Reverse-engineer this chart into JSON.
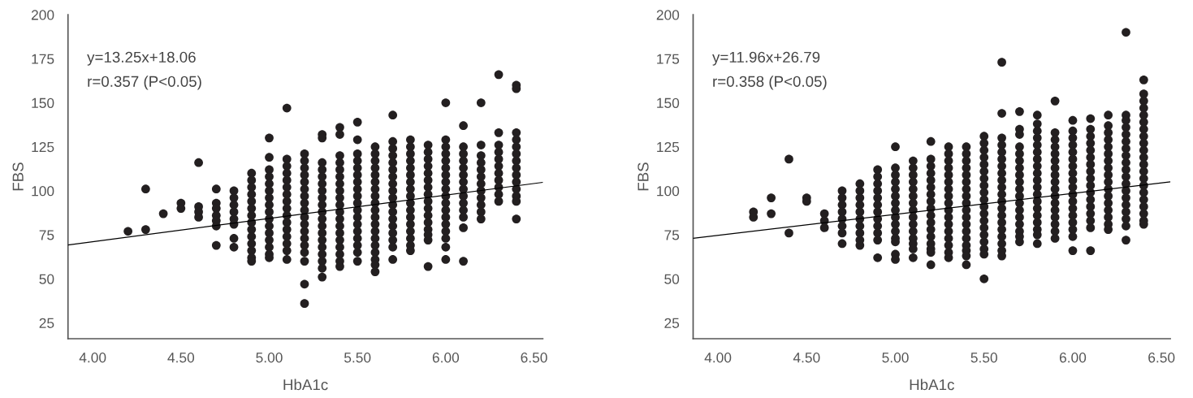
{
  "chart_data": [
    {
      "type": "scatter",
      "xlabel": "HbA1c",
      "ylabel": "FBS",
      "xlim": [
        3.86,
        6.55
      ],
      "ylim": [
        16,
        200
      ],
      "xticks": [
        {
          "value": 4,
          "label": "4.00"
        },
        {
          "value": 4.5,
          "label": "4.50"
        },
        {
          "value": 5,
          "label": "5.00"
        },
        {
          "value": 5.5,
          "label": "5.50"
        },
        {
          "value": 6,
          "label": "6.00"
        },
        {
          "value": 6.5,
          "label": "6.50"
        }
      ],
      "yticks": [
        25,
        50,
        75,
        100,
        125,
        150,
        175,
        200
      ],
      "grid": false,
      "marker": "circle",
      "annotations": [
        "y=13.25x+18.06",
        "r=0.357 (P<0.05)"
      ],
      "series": [
        {
          "color": "#231f20",
          "x": [
            4.2,
            4.3,
            4.3,
            4.4,
            4.5,
            4.5,
            4.6,
            4.6,
            4.6,
            4.6
          ],
          "values": [
            77,
            101,
            78,
            87,
            93,
            90,
            116,
            91,
            88,
            85
          ]
        },
        {
          "color": "#231f20",
          "x": [
            4.7,
            4.7,
            4.7,
            4.7,
            4.7,
            4.7,
            4.7
          ],
          "values": [
            101,
            93,
            90,
            86,
            83,
            80,
            69
          ]
        },
        {
          "color": "#231f20",
          "x": [
            4.8,
            4.8,
            4.8,
            4.8,
            4.8,
            4.8,
            4.8,
            4.8
          ],
          "values": [
            100,
            96,
            92,
            88,
            84,
            81,
            73,
            68
          ]
        },
        {
          "color": "#231f20",
          "x": [
            4.9,
            4.9,
            4.9,
            4.9,
            4.9,
            4.9,
            4.9,
            4.9,
            4.9,
            4.9,
            4.9,
            4.9,
            4.9,
            4.9
          ],
          "values": [
            110,
            106,
            102,
            98,
            94,
            90,
            86,
            82,
            78,
            74,
            70,
            66,
            62,
            60
          ]
        },
        {
          "color": "#231f20",
          "x": [
            5.0,
            5.0,
            5.0,
            5.0,
            5.0,
            5.0,
            5.0,
            5.0,
            5.0,
            5.0,
            5.0,
            5.0,
            5.0,
            5.0,
            5.0,
            5.0
          ],
          "values": [
            130,
            119,
            112,
            108,
            104,
            100,
            96,
            92,
            88,
            84,
            80,
            76,
            72,
            68,
            64,
            62
          ]
        },
        {
          "color": "#231f20",
          "x": [
            5.1,
            5.1,
            5.1,
            5.1,
            5.1,
            5.1,
            5.1,
            5.1,
            5.1,
            5.1,
            5.1,
            5.1,
            5.1,
            5.1,
            5.1,
            5.1
          ],
          "values": [
            147,
            118,
            114,
            110,
            106,
            102,
            98,
            94,
            90,
            86,
            82,
            78,
            74,
            70,
            66,
            61
          ]
        },
        {
          "color": "#231f20",
          "x": [
            5.2,
            5.2,
            5.2,
            5.2,
            5.2,
            5.2,
            5.2,
            5.2,
            5.2,
            5.2,
            5.2,
            5.2,
            5.2,
            5.2,
            5.2,
            5.2,
            5.2,
            5.2
          ],
          "values": [
            121,
            117,
            113,
            109,
            105,
            101,
            97,
            93,
            89,
            85,
            81,
            77,
            73,
            69,
            65,
            60,
            47,
            36
          ]
        },
        {
          "color": "#231f20",
          "x": [
            5.3,
            5.3,
            5.3,
            5.3,
            5.3,
            5.3,
            5.3,
            5.3,
            5.3,
            5.3,
            5.3,
            5.3,
            5.3,
            5.3,
            5.3,
            5.3,
            5.3,
            5.3,
            5.3
          ],
          "values": [
            132,
            130,
            116,
            112,
            108,
            104,
            100,
            96,
            92,
            88,
            84,
            80,
            76,
            72,
            68,
            64,
            60,
            56,
            51
          ]
        },
        {
          "color": "#231f20",
          "x": [
            5.4,
            5.4,
            5.4,
            5.4,
            5.4,
            5.4,
            5.4,
            5.4,
            5.4,
            5.4,
            5.4,
            5.4,
            5.4,
            5.4,
            5.4,
            5.4,
            5.4,
            5.4,
            5.4
          ],
          "values": [
            136,
            132,
            120,
            116,
            112,
            108,
            104,
            100,
            96,
            92,
            88,
            84,
            80,
            76,
            72,
            68,
            64,
            60,
            57
          ]
        },
        {
          "color": "#231f20",
          "x": [
            5.5,
            5.5,
            5.5,
            5.5,
            5.5,
            5.5,
            5.5,
            5.5,
            5.5,
            5.5,
            5.5,
            5.5,
            5.5,
            5.5,
            5.5,
            5.5,
            5.5,
            5.5
          ],
          "values": [
            139,
            129,
            121,
            117,
            113,
            109,
            105,
            101,
            97,
            93,
            89,
            85,
            81,
            77,
            73,
            69,
            65,
            60
          ]
        },
        {
          "color": "#231f20",
          "x": [
            5.6,
            5.6,
            5.6,
            5.6,
            5.6,
            5.6,
            5.6,
            5.6,
            5.6,
            5.6,
            5.6,
            5.6,
            5.6,
            5.6,
            5.6,
            5.6,
            5.6,
            5.6,
            5.6
          ],
          "values": [
            125,
            121,
            117,
            113,
            109,
            105,
            101,
            97,
            93,
            89,
            85,
            81,
            77,
            73,
            69,
            65,
            61,
            58,
            54
          ]
        },
        {
          "color": "#231f20",
          "x": [
            5.7,
            5.7,
            5.7,
            5.7,
            5.7,
            5.7,
            5.7,
            5.7,
            5.7,
            5.7,
            5.7,
            5.7,
            5.7,
            5.7,
            5.7,
            5.7,
            5.7,
            5.7
          ],
          "values": [
            143,
            128,
            124,
            120,
            116,
            112,
            108,
            104,
            100,
            96,
            92,
            88,
            84,
            80,
            76,
            72,
            68,
            61
          ]
        },
        {
          "color": "#231f20",
          "x": [
            5.8,
            5.8,
            5.8,
            5.8,
            5.8,
            5.8,
            5.8,
            5.8,
            5.8,
            5.8,
            5.8,
            5.8,
            5.8,
            5.8,
            5.8,
            5.8,
            5.8
          ],
          "values": [
            129,
            125,
            121,
            117,
            113,
            109,
            105,
            101,
            97,
            93,
            89,
            85,
            81,
            77,
            73,
            69,
            66
          ]
        },
        {
          "color": "#231f20",
          "x": [
            5.9,
            5.9,
            5.9,
            5.9,
            5.9,
            5.9,
            5.9,
            5.9,
            5.9,
            5.9,
            5.9,
            5.9,
            5.9,
            5.9,
            5.9,
            5.9
          ],
          "values": [
            126,
            122,
            118,
            114,
            110,
            106,
            102,
            98,
            94,
            90,
            86,
            82,
            78,
            75,
            72,
            57
          ]
        },
        {
          "color": "#231f20",
          "x": [
            6.0,
            6.0,
            6.0,
            6.0,
            6.0,
            6.0,
            6.0,
            6.0,
            6.0,
            6.0,
            6.0,
            6.0,
            6.0,
            6.0,
            6.0,
            6.0,
            6.0,
            6.0
          ],
          "values": [
            150,
            129,
            125,
            121,
            117,
            113,
            109,
            105,
            101,
            97,
            93,
            89,
            85,
            81,
            77,
            73,
            68,
            61
          ]
        },
        {
          "color": "#231f20",
          "x": [
            6.1,
            6.1,
            6.1,
            6.1,
            6.1,
            6.1,
            6.1,
            6.1,
            6.1,
            6.1,
            6.1,
            6.1,
            6.1,
            6.1
          ],
          "values": [
            137,
            125,
            121,
            117,
            113,
            109,
            105,
            101,
            97,
            93,
            89,
            85,
            79,
            60
          ]
        },
        {
          "color": "#231f20",
          "x": [
            6.2,
            6.2,
            6.2,
            6.2,
            6.2,
            6.2,
            6.2,
            6.2,
            6.2,
            6.2,
            6.2,
            6.2
          ],
          "values": [
            150,
            126,
            120,
            116,
            112,
            108,
            104,
            100,
            96,
            92,
            88,
            84
          ]
        },
        {
          "color": "#231f20",
          "x": [
            6.3,
            6.3,
            6.3,
            6.3,
            6.3,
            6.3,
            6.3,
            6.3,
            6.3,
            6.3,
            6.3
          ],
          "values": [
            166,
            133,
            126,
            122,
            118,
            114,
            110,
            106,
            102,
            98,
            94
          ]
        },
        {
          "color": "#231f20",
          "x": [
            6.4,
            6.4,
            6.4,
            6.4,
            6.4,
            6.4,
            6.4,
            6.4,
            6.4,
            6.4,
            6.4,
            6.4,
            6.4,
            6.4
          ],
          "values": [
            160,
            158,
            133,
            129,
            125,
            121,
            117,
            113,
            109,
            105,
            101,
            97,
            94,
            84
          ]
        },
        {
          "type": "line",
          "marker": "none",
          "color": "#000000",
          "x": [
            3.86,
            6.55
          ],
          "values": [
            69.2,
            104.8
          ]
        }
      ]
    },
    {
      "type": "scatter",
      "xlabel": "HbA1c",
      "ylabel": "FBS",
      "xlim": [
        3.86,
        6.55
      ],
      "ylim": [
        16,
        200
      ],
      "xticks": [
        {
          "value": 4,
          "label": "4.00"
        },
        {
          "value": 4.5,
          "label": "4.50"
        },
        {
          "value": 5,
          "label": "5.00"
        },
        {
          "value": 5.5,
          "label": "5.50"
        },
        {
          "value": 6,
          "label": "6.00"
        },
        {
          "value": 6.5,
          "label": "6.50"
        }
      ],
      "yticks": [
        25,
        50,
        75,
        100,
        125,
        150,
        175,
        200
      ],
      "grid": false,
      "marker": "circle",
      "annotations": [
        "y=11.96x+26.79",
        "r=0.358 (P<0.05)"
      ],
      "series": [
        {
          "color": "#231f20",
          "x": [
            4.2,
            4.2,
            4.3,
            4.3,
            4.4,
            4.4,
            4.5,
            4.5,
            4.6,
            4.6,
            4.6
          ],
          "values": [
            88,
            85,
            96,
            87,
            118,
            76,
            96,
            94,
            87,
            83,
            79
          ]
        },
        {
          "color": "#231f20",
          "x": [
            4.7,
            4.7,
            4.7,
            4.7,
            4.7,
            4.7,
            4.7,
            4.7
          ],
          "values": [
            100,
            96,
            92,
            88,
            84,
            80,
            76,
            70
          ]
        },
        {
          "color": "#231f20",
          "x": [
            4.8,
            4.8,
            4.8,
            4.8,
            4.8,
            4.8,
            4.8,
            4.8,
            4.8,
            4.8
          ],
          "values": [
            104,
            100,
            96,
            92,
            88,
            84,
            80,
            76,
            72,
            69
          ]
        },
        {
          "color": "#231f20",
          "x": [
            4.9,
            4.9,
            4.9,
            4.9,
            4.9,
            4.9,
            4.9,
            4.9,
            4.9,
            4.9,
            4.9,
            4.9
          ],
          "values": [
            112,
            108,
            104,
            100,
            96,
            92,
            88,
            84,
            80,
            76,
            72,
            62
          ]
        },
        {
          "color": "#231f20",
          "x": [
            5.0,
            5.0,
            5.0,
            5.0,
            5.0,
            5.0,
            5.0,
            5.0,
            5.0,
            5.0,
            5.0,
            5.0,
            5.0,
            5.0,
            5.0
          ],
          "values": [
            125,
            113,
            109,
            105,
            101,
            97,
            93,
            89,
            85,
            81,
            77,
            73,
            71,
            64,
            61
          ]
        },
        {
          "color": "#231f20",
          "x": [
            5.1,
            5.1,
            5.1,
            5.1,
            5.1,
            5.1,
            5.1,
            5.1,
            5.1,
            5.1,
            5.1,
            5.1,
            5.1,
            5.1,
            5.1
          ],
          "values": [
            117,
            113,
            109,
            105,
            101,
            97,
            93,
            89,
            85,
            81,
            77,
            73,
            70,
            67,
            62
          ]
        },
        {
          "color": "#231f20",
          "x": [
            5.2,
            5.2,
            5.2,
            5.2,
            5.2,
            5.2,
            5.2,
            5.2,
            5.2,
            5.2,
            5.2,
            5.2,
            5.2,
            5.2,
            5.2,
            5.2,
            5.2
          ],
          "values": [
            128,
            118,
            114,
            110,
            106,
            102,
            98,
            94,
            90,
            86,
            82,
            78,
            74,
            70,
            67,
            65,
            58
          ]
        },
        {
          "color": "#231f20",
          "x": [
            5.3,
            5.3,
            5.3,
            5.3,
            5.3,
            5.3,
            5.3,
            5.3,
            5.3,
            5.3,
            5.3,
            5.3,
            5.3,
            5.3,
            5.3,
            5.3,
            5.3
          ],
          "values": [
            125,
            121,
            117,
            113,
            109,
            105,
            101,
            97,
            93,
            89,
            85,
            81,
            77,
            73,
            69,
            65,
            62
          ]
        },
        {
          "color": "#231f20",
          "x": [
            5.4,
            5.4,
            5.4,
            5.4,
            5.4,
            5.4,
            5.4,
            5.4,
            5.4,
            5.4,
            5.4,
            5.4,
            5.4,
            5.4,
            5.4,
            5.4,
            5.4,
            5.4
          ],
          "values": [
            125,
            121,
            117,
            113,
            109,
            105,
            101,
            97,
            93,
            89,
            85,
            81,
            77,
            73,
            69,
            66,
            63,
            58
          ]
        },
        {
          "color": "#231f20",
          "x": [
            5.5,
            5.5,
            5.5,
            5.5,
            5.5,
            5.5,
            5.5,
            5.5,
            5.5,
            5.5,
            5.5,
            5.5,
            5.5,
            5.5,
            5.5,
            5.5,
            5.5,
            5.5,
            5.5
          ],
          "values": [
            131,
            127,
            123,
            119,
            115,
            111,
            107,
            103,
            99,
            95,
            91,
            87,
            83,
            79,
            75,
            71,
            67,
            64,
            50
          ]
        },
        {
          "color": "#231f20",
          "x": [
            5.6,
            5.6,
            5.6,
            5.6,
            5.6,
            5.6,
            5.6,
            5.6,
            5.6,
            5.6,
            5.6,
            5.6,
            5.6,
            5.6,
            5.6,
            5.6,
            5.6,
            5.6,
            5.6,
            5.6
          ],
          "values": [
            173,
            144,
            130,
            126,
            122,
            118,
            114,
            110,
            106,
            102,
            98,
            94,
            90,
            86,
            82,
            78,
            74,
            70,
            66,
            63
          ]
        },
        {
          "color": "#231f20",
          "x": [
            5.7,
            5.7,
            5.7,
            5.7,
            5.7,
            5.7,
            5.7,
            5.7,
            5.7,
            5.7,
            5.7,
            5.7,
            5.7,
            5.7,
            5.7,
            5.7,
            5.7,
            5.7
          ],
          "values": [
            145,
            135,
            132,
            125,
            121,
            117,
            113,
            109,
            105,
            101,
            97,
            93,
            89,
            85,
            81,
            77,
            74,
            71
          ]
        },
        {
          "color": "#231f20",
          "x": [
            5.8,
            5.8,
            5.8,
            5.8,
            5.8,
            5.8,
            5.8,
            5.8,
            5.8,
            5.8,
            5.8,
            5.8,
            5.8,
            5.8,
            5.8,
            5.8,
            5.8,
            5.8,
            5.8
          ],
          "values": [
            143,
            138,
            134,
            130,
            126,
            122,
            118,
            114,
            110,
            106,
            102,
            98,
            94,
            90,
            86,
            82,
            78,
            75,
            70
          ]
        },
        {
          "color": "#231f20",
          "x": [
            5.9,
            5.9,
            5.9,
            5.9,
            5.9,
            5.9,
            5.9,
            5.9,
            5.9,
            5.9,
            5.9,
            5.9,
            5.9,
            5.9,
            5.9,
            5.9,
            5.9
          ],
          "values": [
            151,
            133,
            129,
            125,
            121,
            117,
            113,
            109,
            105,
            101,
            97,
            93,
            89,
            85,
            81,
            77,
            73
          ]
        },
        {
          "color": "#231f20",
          "x": [
            6.0,
            6.0,
            6.0,
            6.0,
            6.0,
            6.0,
            6.0,
            6.0,
            6.0,
            6.0,
            6.0,
            6.0,
            6.0,
            6.0,
            6.0,
            6.0,
            6.0,
            6.0
          ],
          "values": [
            140,
            134,
            130,
            126,
            122,
            118,
            114,
            110,
            106,
            102,
            98,
            94,
            90,
            86,
            82,
            78,
            74,
            66
          ]
        },
        {
          "color": "#231f20",
          "x": [
            6.1,
            6.1,
            6.1,
            6.1,
            6.1,
            6.1,
            6.1,
            6.1,
            6.1,
            6.1,
            6.1,
            6.1,
            6.1,
            6.1,
            6.1,
            6.1,
            6.1
          ],
          "values": [
            141,
            135,
            131,
            127,
            123,
            119,
            115,
            111,
            107,
            103,
            99,
            95,
            91,
            87,
            83,
            79,
            66
          ]
        },
        {
          "color": "#231f20",
          "x": [
            6.2,
            6.2,
            6.2,
            6.2,
            6.2,
            6.2,
            6.2,
            6.2,
            6.2,
            6.2,
            6.2,
            6.2,
            6.2,
            6.2,
            6.2,
            6.2,
            6.2
          ],
          "values": [
            143,
            137,
            133,
            129,
            125,
            121,
            117,
            113,
            109,
            105,
            101,
            97,
            93,
            89,
            85,
            81,
            78
          ]
        },
        {
          "color": "#231f20",
          "x": [
            6.3,
            6.3,
            6.3,
            6.3,
            6.3,
            6.3,
            6.3,
            6.3,
            6.3,
            6.3,
            6.3,
            6.3,
            6.3,
            6.3,
            6.3,
            6.3,
            6.3,
            6.3,
            6.3
          ],
          "values": [
            190,
            143,
            140,
            136,
            132,
            128,
            124,
            120,
            116,
            112,
            108,
            104,
            100,
            96,
            92,
            88,
            84,
            80,
            72
          ]
        },
        {
          "color": "#231f20",
          "x": [
            6.4,
            6.4,
            6.4,
            6.4,
            6.4,
            6.4,
            6.4,
            6.4,
            6.4,
            6.4,
            6.4,
            6.4,
            6.4,
            6.4,
            6.4,
            6.4,
            6.4,
            6.4,
            6.4,
            6.4,
            6.4
          ],
          "values": [
            163,
            155,
            151,
            147,
            143,
            139,
            135,
            131,
            127,
            123,
            119,
            115,
            111,
            107,
            103,
            99,
            95,
            91,
            87,
            83,
            81
          ]
        },
        {
          "type": "line",
          "marker": "none",
          "color": "#000000",
          "x": [
            3.86,
            6.55
          ],
          "values": [
            73.0,
            105.1
          ]
        }
      ]
    }
  ]
}
